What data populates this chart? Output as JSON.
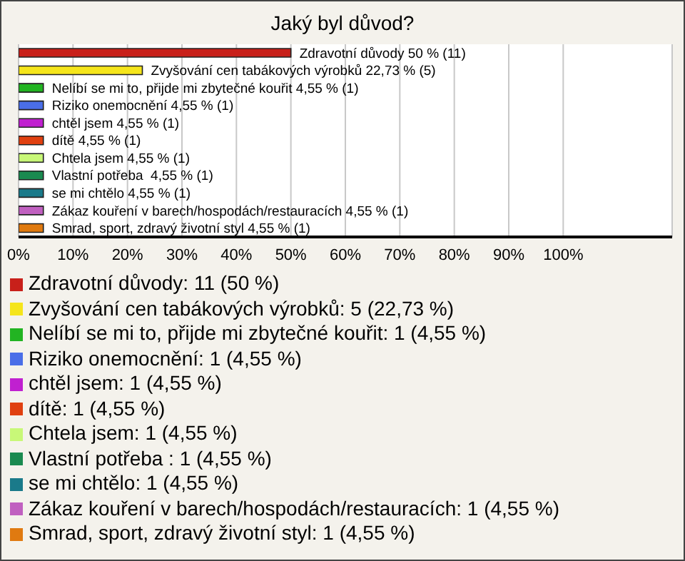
{
  "chart_data": {
    "type": "bar",
    "orientation": "horizontal",
    "stacked": true,
    "title": "Jaký byl důvod?",
    "categories": [
      null,
      null,
      null,
      null,
      null,
      null,
      null,
      null,
      null,
      null,
      null
    ],
    "series": [
      {
        "name": "Zdravotní důvody: 11 (50 %)",
        "color": "#c8201a",
        "values": [
          50,
          null,
          null,
          null,
          null,
          null,
          null,
          null,
          null,
          null,
          null
        ],
        "value_labels": [
          "Zdravotní důvody 50 % (11)",
          null,
          null,
          null,
          null,
          null,
          null,
          null,
          null,
          null,
          null
        ]
      },
      {
        "name": "Zvyšování cen tabákových výrobků: 5 (22,73 %)",
        "color": "#f5e51b",
        "values": [
          null,
          22.73,
          null,
          null,
          null,
          null,
          null,
          null,
          null,
          null,
          null
        ],
        "value_labels": [
          null,
          "Zvyšování cen tabákových výrobků 22,73 % (5)",
          null,
          null,
          null,
          null,
          null,
          null,
          null,
          null,
          null
        ]
      },
      {
        "name": "Nelíbí se mi to, přijde mi zbytečné kouřit: 1 (4,55 %)",
        "color": "#22b422",
        "values": [
          null,
          null,
          4.55,
          null,
          null,
          null,
          null,
          null,
          null,
          null,
          null
        ],
        "value_labels": [
          null,
          null,
          "Nelíbí se mi to, přijde mi zbytečné kouřit 4,55 % (1)",
          null,
          null,
          null,
          null,
          null,
          null,
          null,
          null
        ]
      },
      {
        "name": "Riziko onemocnění: 1 (4,55 %)",
        "color": "#4a6ee8",
        "values": [
          null,
          null,
          null,
          4.55,
          null,
          null,
          null,
          null,
          null,
          null,
          null
        ],
        "value_labels": [
          null,
          null,
          null,
          "Riziko onemocnění 4,55 % (1)",
          null,
          null,
          null,
          null,
          null,
          null,
          null
        ]
      },
      {
        "name": "chtěl jsem: 1 (4,55 %)",
        "color": "#c020d0",
        "values": [
          null,
          null,
          null,
          null,
          4.55,
          null,
          null,
          null,
          null,
          null,
          null
        ],
        "value_labels": [
          null,
          null,
          null,
          null,
          "chtěl jsem 4,55 % (1)",
          null,
          null,
          null,
          null,
          null,
          null
        ]
      },
      {
        "name": "dítě: 1 (4,55 %)",
        "color": "#e04010",
        "values": [
          null,
          null,
          null,
          null,
          null,
          4.55,
          null,
          null,
          null,
          null,
          null
        ],
        "value_labels": [
          null,
          null,
          null,
          null,
          null,
          "dítě 4,55 % (1)",
          null,
          null,
          null,
          null,
          null
        ]
      },
      {
        "name": "Chtela jsem: 1 (4,55 %)",
        "color": "#c8f878",
        "values": [
          null,
          null,
          null,
          null,
          null,
          null,
          4.55,
          null,
          null,
          null,
          null
        ],
        "value_labels": [
          null,
          null,
          null,
          null,
          null,
          null,
          "Chtela jsem 4,55 % (1)",
          null,
          null,
          null,
          null
        ]
      },
      {
        "name": "Vlastní potřeba : 1 (4,55 %)",
        "color": "#1a8a50",
        "values": [
          null,
          null,
          null,
          null,
          null,
          null,
          null,
          4.55,
          null,
          null,
          null
        ],
        "value_labels": [
          null,
          null,
          null,
          null,
          null,
          null,
          null,
          "Vlastní potřeba  4,55 % (1)",
          null,
          null,
          null
        ]
      },
      {
        "name": "se mi chtělo: 1 (4,55 %)",
        "color": "#1a7a8a",
        "values": [
          null,
          null,
          null,
          null,
          null,
          null,
          null,
          null,
          4.55,
          null,
          null
        ],
        "value_labels": [
          null,
          null,
          null,
          null,
          null,
          null,
          null,
          null,
          "se mi chtělo 4,55 % (1)",
          null,
          null
        ]
      },
      {
        "name": "Zákaz kouření v barech/hospodách/restauracích: 1 (4,55 %)",
        "color": "#c060c0",
        "values": [
          null,
          null,
          null,
          null,
          null,
          null,
          null,
          null,
          null,
          4.55,
          null
        ],
        "value_labels": [
          null,
          null,
          null,
          null,
          null,
          null,
          null,
          null,
          null,
          "Zákaz kouření v barech/hospodách/restauracích 4,55 % (1)",
          null
        ]
      },
      {
        "name": "Smrad, sport, zdravý životní styl: 1 (4,55 %)",
        "color": "#e07a10",
        "values": [
          null,
          null,
          null,
          null,
          null,
          null,
          null,
          null,
          null,
          null,
          4.55
        ],
        "value_labels": [
          null,
          null,
          null,
          null,
          null,
          null,
          null,
          null,
          null,
          null,
          "Smrad, sport, zdravý životní styl 4,55 % (1)"
        ]
      }
    ],
    "xlim": [
      0,
      120
    ],
    "xticks": [
      {
        "value": 0,
        "label": "0%"
      },
      {
        "value": 10,
        "label": "10%"
      },
      {
        "value": 20,
        "label": "20%"
      },
      {
        "value": 30,
        "label": "30%"
      },
      {
        "value": 40,
        "label": "40%"
      },
      {
        "value": 50,
        "label": "50%"
      },
      {
        "value": 60,
        "label": "60%"
      },
      {
        "value": 70,
        "label": "70%"
      },
      {
        "value": 80,
        "label": "80%"
      },
      {
        "value": 90,
        "label": "90%"
      },
      {
        "value": 100,
        "label": "100%"
      }
    ],
    "grid": "x",
    "legend": "bottom",
    "tick_labels": "x"
  }
}
